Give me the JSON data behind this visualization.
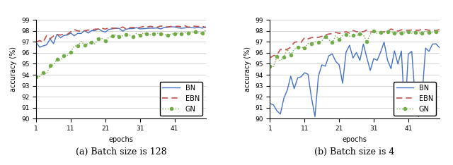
{
  "fig_width": 6.4,
  "fig_height": 2.34,
  "dpi": 100,
  "background_color": "#ffffff",
  "subtitle_a": "(a) Batch size is 128",
  "subtitle_b": "(b) Batch size is 4",
  "xlabel": "epochs",
  "ylabel": "accuracy (%)",
  "ylim_a": [
    90,
    99
  ],
  "ylim_b": [
    90,
    99
  ],
  "xlim": [
    1,
    50
  ],
  "xticks": [
    1,
    11,
    21,
    31,
    41
  ],
  "yticks_a": [
    90,
    91,
    92,
    93,
    94,
    95,
    96,
    97,
    98,
    99
  ],
  "yticks_b": [
    90,
    91,
    92,
    93,
    94,
    95,
    96,
    97,
    98,
    99
  ],
  "colors": {
    "BN": "#4472c4",
    "EBN": "#c0504d",
    "GN": "#70ad47"
  },
  "legend_entries": [
    "BN",
    "EBN",
    "GN"
  ],
  "grid_color": "#c0c0c0",
  "subtitle_fontsize": 9,
  "axis_label_fontsize": 7,
  "tick_fontsize": 6.5,
  "legend_fontsize": 7
}
